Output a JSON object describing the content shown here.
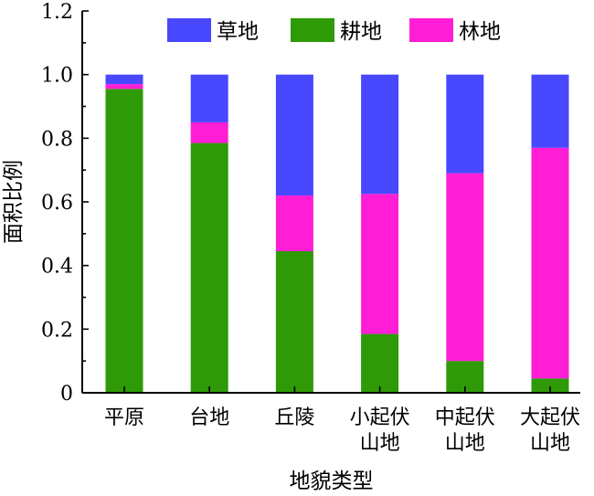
{
  "chart_data": {
    "type": "bar",
    "stacked": true,
    "categories": [
      "平原",
      "台地",
      "丘陵",
      "小起伏\n山地",
      "中起伏\n山地",
      "大起伏\n山地"
    ],
    "series": [
      {
        "name": "耕地",
        "color": "#2e9a07",
        "values": [
          0.955,
          0.785,
          0.445,
          0.185,
          0.1,
          0.045
        ]
      },
      {
        "name": "林地",
        "color": "#ff1ed6",
        "values": [
          0.015,
          0.065,
          0.175,
          0.44,
          0.59,
          0.725
        ]
      },
      {
        "name": "草地",
        "color": "#4848ff",
        "values": [
          0.03,
          0.15,
          0.38,
          0.375,
          0.31,
          0.23
        ]
      }
    ],
    "legend_order": [
      "草地",
      "耕地",
      "林地"
    ],
    "xlabel": "地貌类型",
    "ylabel": "面积比例",
    "ylim": [
      0,
      1.2
    ],
    "yticks": [
      "0",
      "0.2",
      "0.4",
      "0.6",
      "0.8",
      "1.0",
      "1.2"
    ],
    "grid": false,
    "legend_position": "top"
  }
}
